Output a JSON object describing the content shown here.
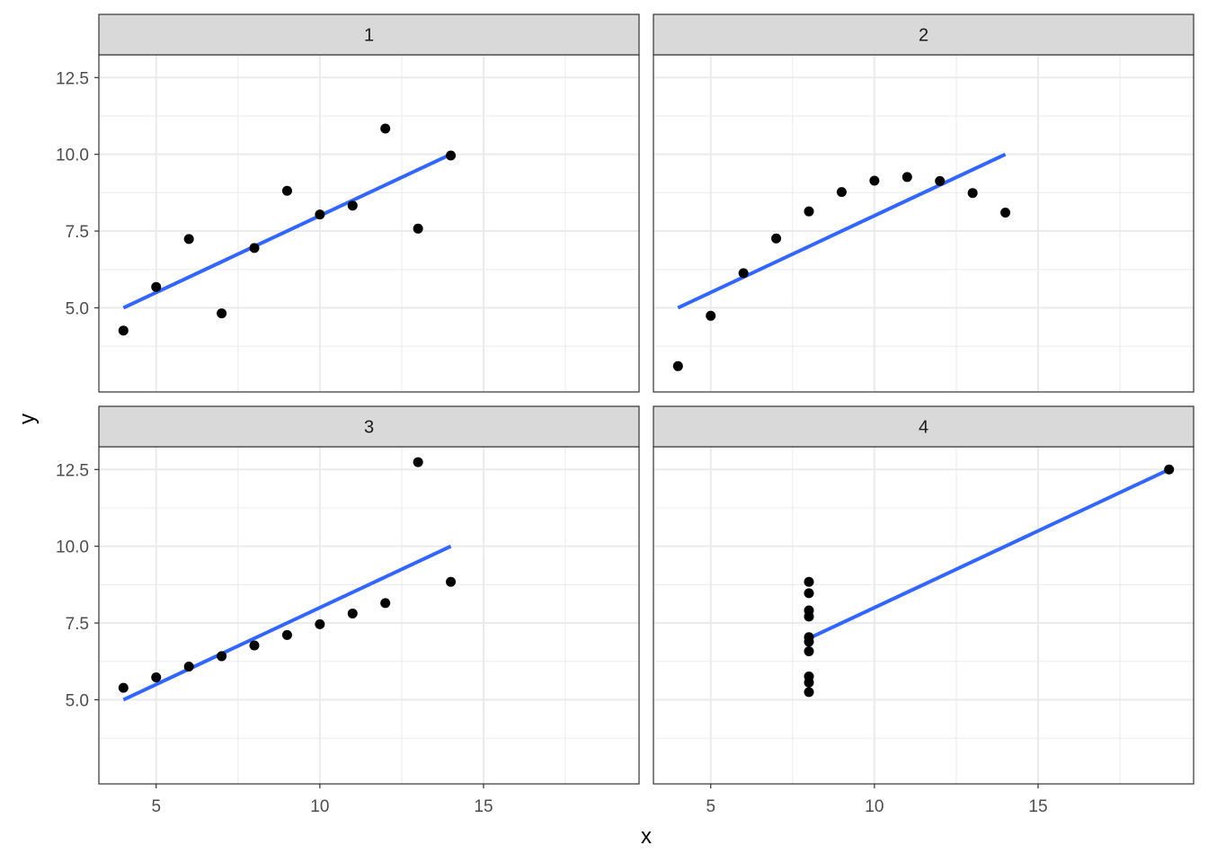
{
  "chart_data": {
    "type": "scatter",
    "xlabel": "x",
    "ylabel": "y",
    "xlim": [
      3.25,
      19.75
    ],
    "ylim": [
      2.26,
      13.24
    ],
    "x_ticks": [
      5,
      10,
      15
    ],
    "x_tick_labels": [
      "5",
      "10",
      "15"
    ],
    "y_ticks": [
      5,
      7.5,
      10,
      12.5
    ],
    "y_tick_labels": [
      "5.0",
      "7.5",
      "10.0",
      "12.5"
    ],
    "x_minor_grid": [
      7.5,
      12.5,
      17.5
    ],
    "y_minor_grid": [
      3.75,
      6.25,
      8.75,
      11.25
    ],
    "grid": true,
    "theme": "bw",
    "colors": {
      "points": "#000000",
      "fit_line": "#3366FF",
      "strip_bg": "#D9D9D9",
      "grid": "#EBEBEB",
      "panel_border": "#333333"
    },
    "panels": [
      {
        "strip": "1",
        "x": [
          10,
          8,
          13,
          9,
          11,
          14,
          6,
          4,
          12,
          7,
          5
        ],
        "y": [
          8.04,
          6.95,
          7.58,
          8.81,
          8.33,
          9.96,
          7.24,
          4.26,
          10.84,
          4.82,
          5.68
        ],
        "fit": {
          "x": [
            4,
            14
          ],
          "y": [
            5.0,
            10.0
          ]
        }
      },
      {
        "strip": "2",
        "x": [
          10,
          8,
          13,
          9,
          11,
          14,
          6,
          4,
          12,
          7,
          5
        ],
        "y": [
          9.14,
          8.14,
          8.74,
          8.77,
          9.26,
          8.1,
          6.13,
          3.1,
          9.13,
          7.26,
          4.74
        ],
        "fit": {
          "x": [
            4,
            14
          ],
          "y": [
            5.0,
            10.0
          ]
        }
      },
      {
        "strip": "3",
        "x": [
          10,
          8,
          13,
          9,
          11,
          14,
          6,
          4,
          12,
          7,
          5
        ],
        "y": [
          7.46,
          6.77,
          12.74,
          7.11,
          7.81,
          8.84,
          6.08,
          5.39,
          8.15,
          6.42,
          5.73
        ],
        "fit": {
          "x": [
            4,
            14
          ],
          "y": [
            5.0,
            10.0
          ]
        }
      },
      {
        "strip": "4",
        "x": [
          8,
          8,
          8,
          8,
          8,
          8,
          8,
          19,
          8,
          8,
          8
        ],
        "y": [
          6.58,
          5.76,
          7.71,
          8.84,
          8.47,
          7.04,
          5.25,
          12.5,
          5.56,
          7.91,
          6.89
        ],
        "fit": {
          "x": [
            8,
            19
          ],
          "y": [
            7.0,
            12.5
          ]
        }
      }
    ]
  }
}
